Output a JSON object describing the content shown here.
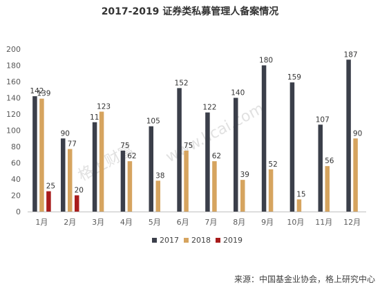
{
  "chart_data": {
    "type": "bar",
    "title": "2017-2019 证券类私募管理人备案情况",
    "categories": [
      "1月",
      "2月",
      "3月",
      "4月",
      "5月",
      "6月",
      "7月",
      "8月",
      "9月",
      "10月",
      "11月",
      "12月"
    ],
    "series": [
      {
        "name": "2017",
        "color": "#3b3f4a",
        "values": [
          142,
          90,
          110,
          75,
          105,
          152,
          122,
          140,
          180,
          159,
          107,
          187
        ]
      },
      {
        "name": "2018",
        "color": "#d6a45f",
        "values": [
          139,
          77,
          123,
          62,
          38,
          75,
          62,
          39,
          52,
          15,
          56,
          90
        ]
      },
      {
        "name": "2019",
        "color": "#a81c1c",
        "values": [
          25,
          20,
          null,
          null,
          null,
          null,
          null,
          null,
          null,
          null,
          null,
          null
        ]
      }
    ],
    "y_ticks": [
      0,
      20,
      40,
      60,
      80,
      100,
      120,
      140,
      160,
      180,
      200
    ],
    "ylim": [
      0,
      200
    ],
    "grid": false,
    "legend": "bottom",
    "xlabel": "",
    "ylabel": ""
  },
  "watermark": {
    "cn": "格上财富",
    "en": "www.licai.com"
  },
  "source": "来源：中国基金业协会，格上研究中心"
}
